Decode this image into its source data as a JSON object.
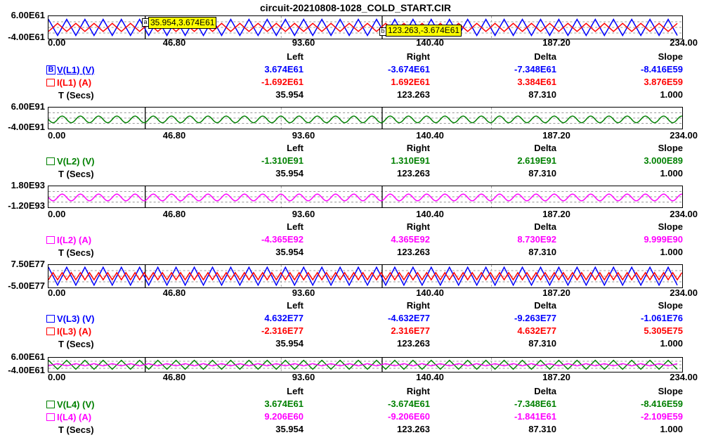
{
  "title": "circuit-20210808-1028_COLD_START.CIR",
  "x_ticks": [
    "0.00",
    "46.80",
    "93.60",
    "140.40",
    "187.20",
    "234.00"
  ],
  "col_headers": {
    "left": "Left",
    "right": "Right",
    "delta": "Delta",
    "slope": "Slope"
  },
  "cursor_tips": {
    "left": "35.954,3.674E61",
    "right": "123.263,-3.674E61"
  },
  "cursor_tags": {
    "left": "a",
    "right": "b"
  },
  "panels": [
    {
      "y_top": "6.00E61",
      "y_bottom": "-4.00E61",
      "rows": [
        {
          "marker": "B",
          "label": "V(L1) (V)",
          "color": "#0000ff",
          "left": "3.674E61",
          "right": "-3.674E61",
          "delta": "-7.348E61",
          "slope": "-8.416E59"
        },
        {
          "label": "I(L1) (A)",
          "color": "#ff0000",
          "left": "-1.692E61",
          "right": "1.692E61",
          "delta": "3.384E61",
          "slope": "3.876E59"
        },
        {
          "label": "T (Secs)",
          "color": "#000000",
          "left": "35.954",
          "right": "123.263",
          "delta": "87.310",
          "slope": "1.000"
        }
      ]
    },
    {
      "y_top": "6.00E91",
      "y_bottom": "-4.00E91",
      "rows": [
        {
          "label": "V(L2) (V)",
          "color": "#008000",
          "left": "-1.310E91",
          "right": "1.310E91",
          "delta": "2.619E91",
          "slope": "3.000E89"
        },
        {
          "label": "T (Secs)",
          "color": "#000000",
          "left": "35.954",
          "right": "123.263",
          "delta": "87.310",
          "slope": "1.000"
        }
      ]
    },
    {
      "y_top": "1.80E93",
      "y_bottom": "-1.20E93",
      "rows": [
        {
          "label": "I(L2) (A)",
          "color": "#ff00ff",
          "left": "-4.365E92",
          "right": "4.365E92",
          "delta": "8.730E92",
          "slope": "9.999E90"
        },
        {
          "label": "T (Secs)",
          "color": "#000000",
          "left": "35.954",
          "right": "123.263",
          "delta": "87.310",
          "slope": "1.000"
        }
      ]
    },
    {
      "y_top": "7.50E77",
      "y_bottom": "-5.00E77",
      "rows": [
        {
          "label": "V(L3) (V)",
          "color": "#0000ff",
          "left": "4.632E77",
          "right": "-4.632E77",
          "delta": "-9.263E77",
          "slope": "-1.061E76"
        },
        {
          "label": "I(L3) (A)",
          "color": "#ff0000",
          "left": "-2.316E77",
          "right": "2.316E77",
          "delta": "4.632E77",
          "slope": "5.305E75"
        },
        {
          "label": "T (Secs)",
          "color": "#000000",
          "left": "35.954",
          "right": "123.263",
          "delta": "87.310",
          "slope": "1.000"
        }
      ]
    },
    {
      "y_top": "6.00E61",
      "y_bottom": "-4.00E61",
      "rows": [
        {
          "label": "V(L4) (V)",
          "color": "#008000",
          "left": "3.674E61",
          "right": "-3.674E61",
          "delta": "-7.348E61",
          "slope": "-8.416E59"
        },
        {
          "label": "I(L4) (A)",
          "color": "#ff00ff",
          "left": "9.206E60",
          "right": "-9.206E60",
          "delta": "-1.841E61",
          "slope": "-2.109E59"
        },
        {
          "label": "T (Secs)",
          "color": "#000000",
          "left": "35.954",
          "right": "123.263",
          "delta": "87.310",
          "slope": "1.000"
        }
      ]
    }
  ]
}
